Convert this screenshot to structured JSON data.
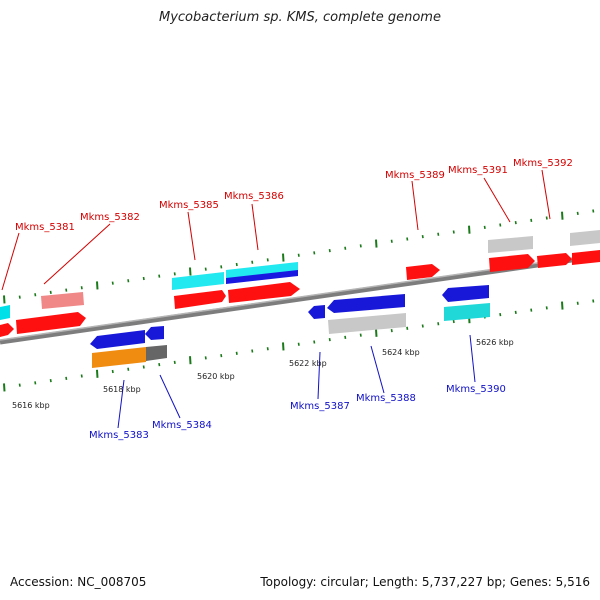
{
  "title": "Mycobacterium sp. KMS, complete genome",
  "footer": {
    "accession": "Accession: NC_008705",
    "topology": "Topology: circular; Length: 5,737,227 bp; Genes: 5,516"
  },
  "colors": {
    "backbone": "#8c8c8c",
    "tick": "#1a7a1a",
    "top_label": "#d40000",
    "bottom_label": "#1010c8"
  },
  "scale_labels": [
    "5616 kbp",
    "5618 kbp",
    "5620 kbp",
    "5622 kbp",
    "5624 kbp",
    "5626 kbp"
  ],
  "top_gene_labels": [
    "Mkms_5381",
    "Mkms_5382",
    "Mkms_5385",
    "Mkms_5386",
    "Mkms_5389",
    "Mkms_5391",
    "Mkms_5392"
  ],
  "bottom_gene_labels": [
    "Mkms_5383",
    "Mkms_5384",
    "Mkms_5387",
    "Mkms_5388",
    "Mkms_5390"
  ]
}
